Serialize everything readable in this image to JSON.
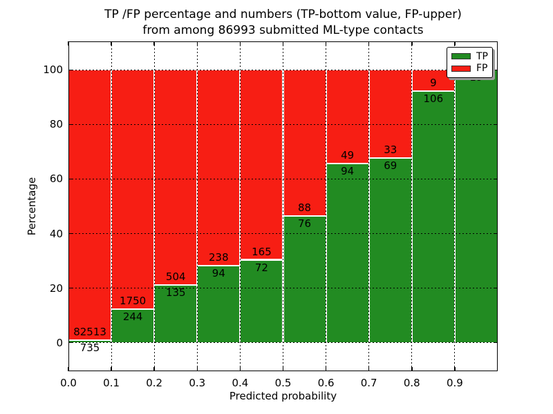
{
  "figure": {
    "title_line1": "TP /FP percentage and numbers (TP-bottom value, FP-upper)",
    "title_line2": "from among 86993 submitted ML-type contacts"
  },
  "legend": {
    "position": "upper right",
    "entries": [
      {
        "label": "TP",
        "color": "#228b22"
      },
      {
        "label": "FP",
        "color": "#f71e14"
      }
    ]
  },
  "chart_data": {
    "type": "bar",
    "stacked": true,
    "title": "TP /FP percentage and numbers (TP-bottom value, FP-upper) from among 86993 submitted ML-type contacts",
    "total_contacts": 86993,
    "xlabel": "Predicted probability",
    "ylabel": "Percentage",
    "categories": [
      "0.0-0.1",
      "0.1-0.2",
      "0.2-0.3",
      "0.3-0.4",
      "0.4-0.5",
      "0.5-0.6",
      "0.6-0.7",
      "0.7-0.8",
      "0.8-0.9",
      "0.9-1.0"
    ],
    "x_tick_labels": [
      "0.0",
      "0.1",
      "0.2",
      "0.3",
      "0.4",
      "0.5",
      "0.6",
      "0.7",
      "0.8",
      "0.9"
    ],
    "y_tick_values": [
      0,
      20,
      40,
      60,
      80,
      100
    ],
    "y_tick_labels": [
      "0",
      "20",
      "40",
      "60",
      "80",
      "100"
    ],
    "xlim": [
      0.0,
      1.0
    ],
    "ylim": [
      -10.5,
      110.5
    ],
    "grid": "dotted-black-both-axes",
    "bar_edge_color": "#ffffff",
    "legend_position": "upper right",
    "series": [
      {
        "name": "TP",
        "color": "#228b22",
        "counts": [
          735,
          244,
          135,
          94,
          72,
          76,
          94,
          69,
          106,
          19
        ]
      },
      {
        "name": "FP",
        "color": "#f71e14",
        "counts": [
          82513,
          1750,
          504,
          238,
          165,
          88,
          49,
          33,
          9,
          0
        ]
      }
    ],
    "tp_percent_of_bin": [
      0.88,
      12.24,
      21.13,
      28.31,
      30.38,
      46.34,
      65.73,
      67.65,
      92.17,
      100.0
    ]
  }
}
